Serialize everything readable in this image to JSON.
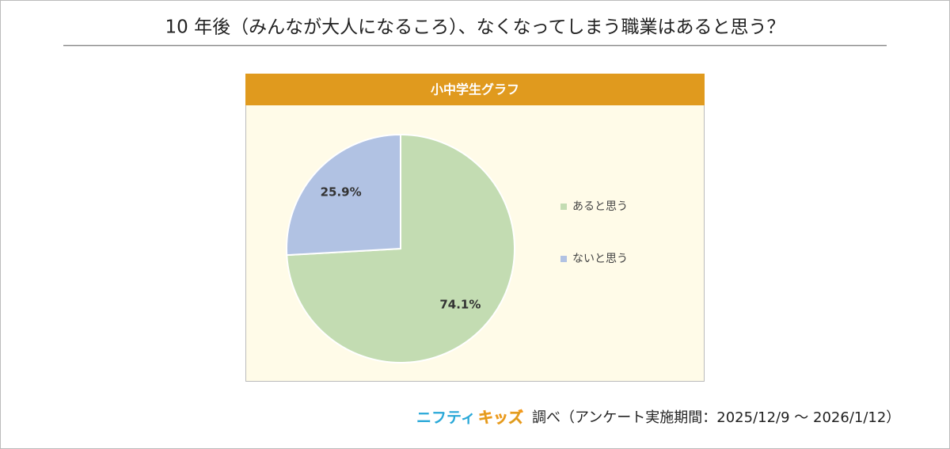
{
  "chart_data": {
    "type": "pie",
    "title": "10 年後（みんなが大人になるころ）、なくなってしまう職業はあると思う？",
    "subtitle": "小中学生グラフ",
    "categories": [
      "あると思う",
      "ないと思う"
    ],
    "values": [
      74.1,
      25.9
    ],
    "value_labels": [
      "74.1%",
      "25.9%"
    ],
    "colors": [
      "#c3dcb2",
      "#b1c2e3"
    ],
    "legend": "right"
  },
  "footer": {
    "logo": [
      "ニフティ",
      "キッズ"
    ],
    "note": "調べ（アンケート実施期間：2025/12/9 ～ 2026/1/12）"
  }
}
